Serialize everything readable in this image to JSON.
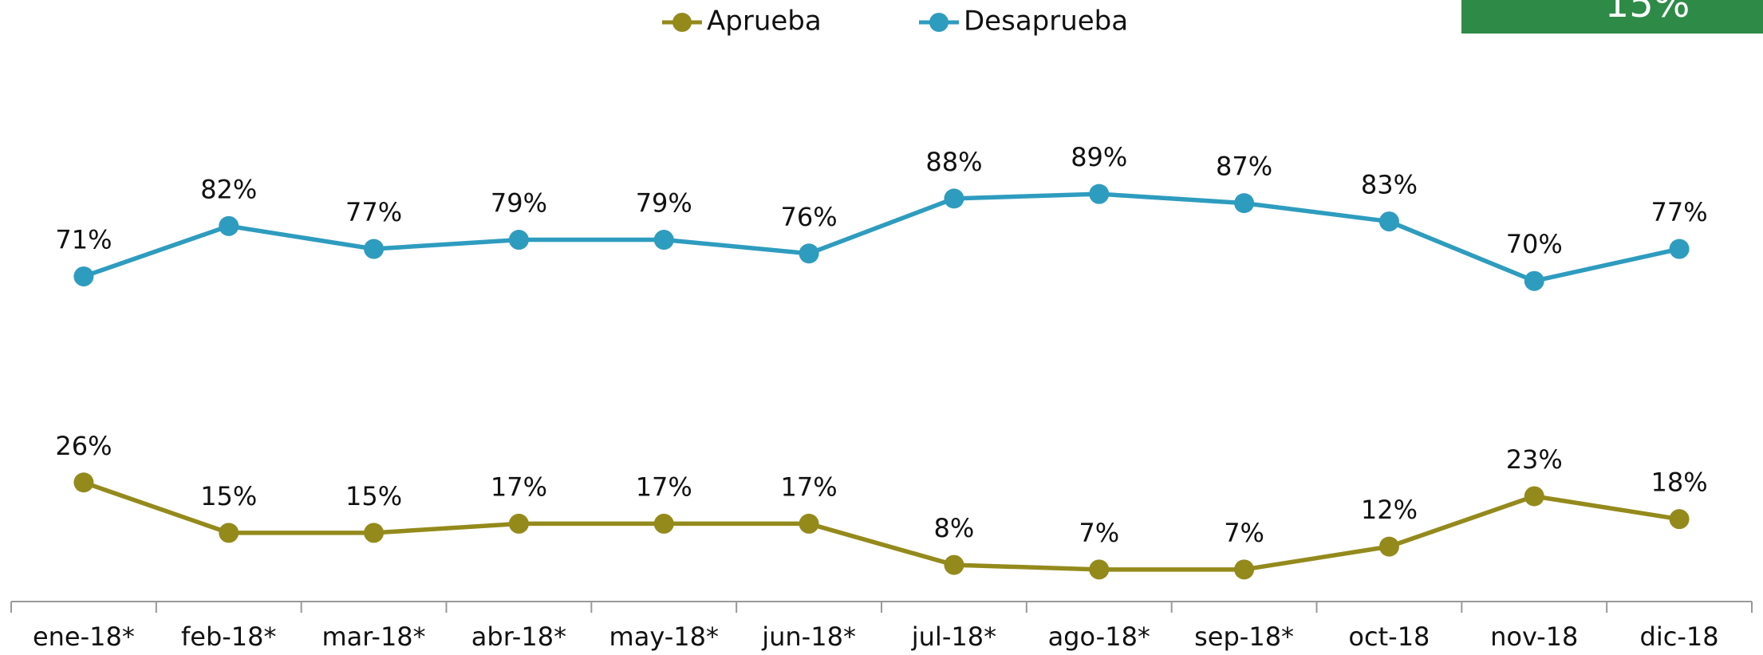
{
  "chart_data": {
    "type": "line",
    "categories": [
      "ene-18*",
      "feb-18*",
      "mar-18*",
      "abr-18*",
      "may-18*",
      "jun-18*",
      "jul-18*",
      "ago-18*",
      "sep-18*",
      "oct-18",
      "nov-18",
      "dic-18"
    ],
    "series": [
      {
        "name": "Aprueba",
        "color": "#948a1c",
        "values": [
          26,
          15,
          15,
          17,
          17,
          17,
          8,
          7,
          7,
          12,
          23,
          18
        ],
        "value_labels": [
          "26%",
          "15%",
          "15%",
          "17%",
          "17%",
          "17%",
          "8%",
          "7%",
          "7%",
          "12%",
          "23%",
          "18%"
        ]
      },
      {
        "name": "Desaprueba",
        "color": "#2e9cbf",
        "values": [
          71,
          82,
          77,
          79,
          79,
          76,
          88,
          89,
          87,
          83,
          70,
          77
        ],
        "value_labels": [
          "71%",
          "82%",
          "77%",
          "79%",
          "79%",
          "76%",
          "88%",
          "89%",
          "87%",
          "83%",
          "70%",
          "77%"
        ]
      }
    ],
    "annotation": "15%",
    "legend": "top"
  }
}
